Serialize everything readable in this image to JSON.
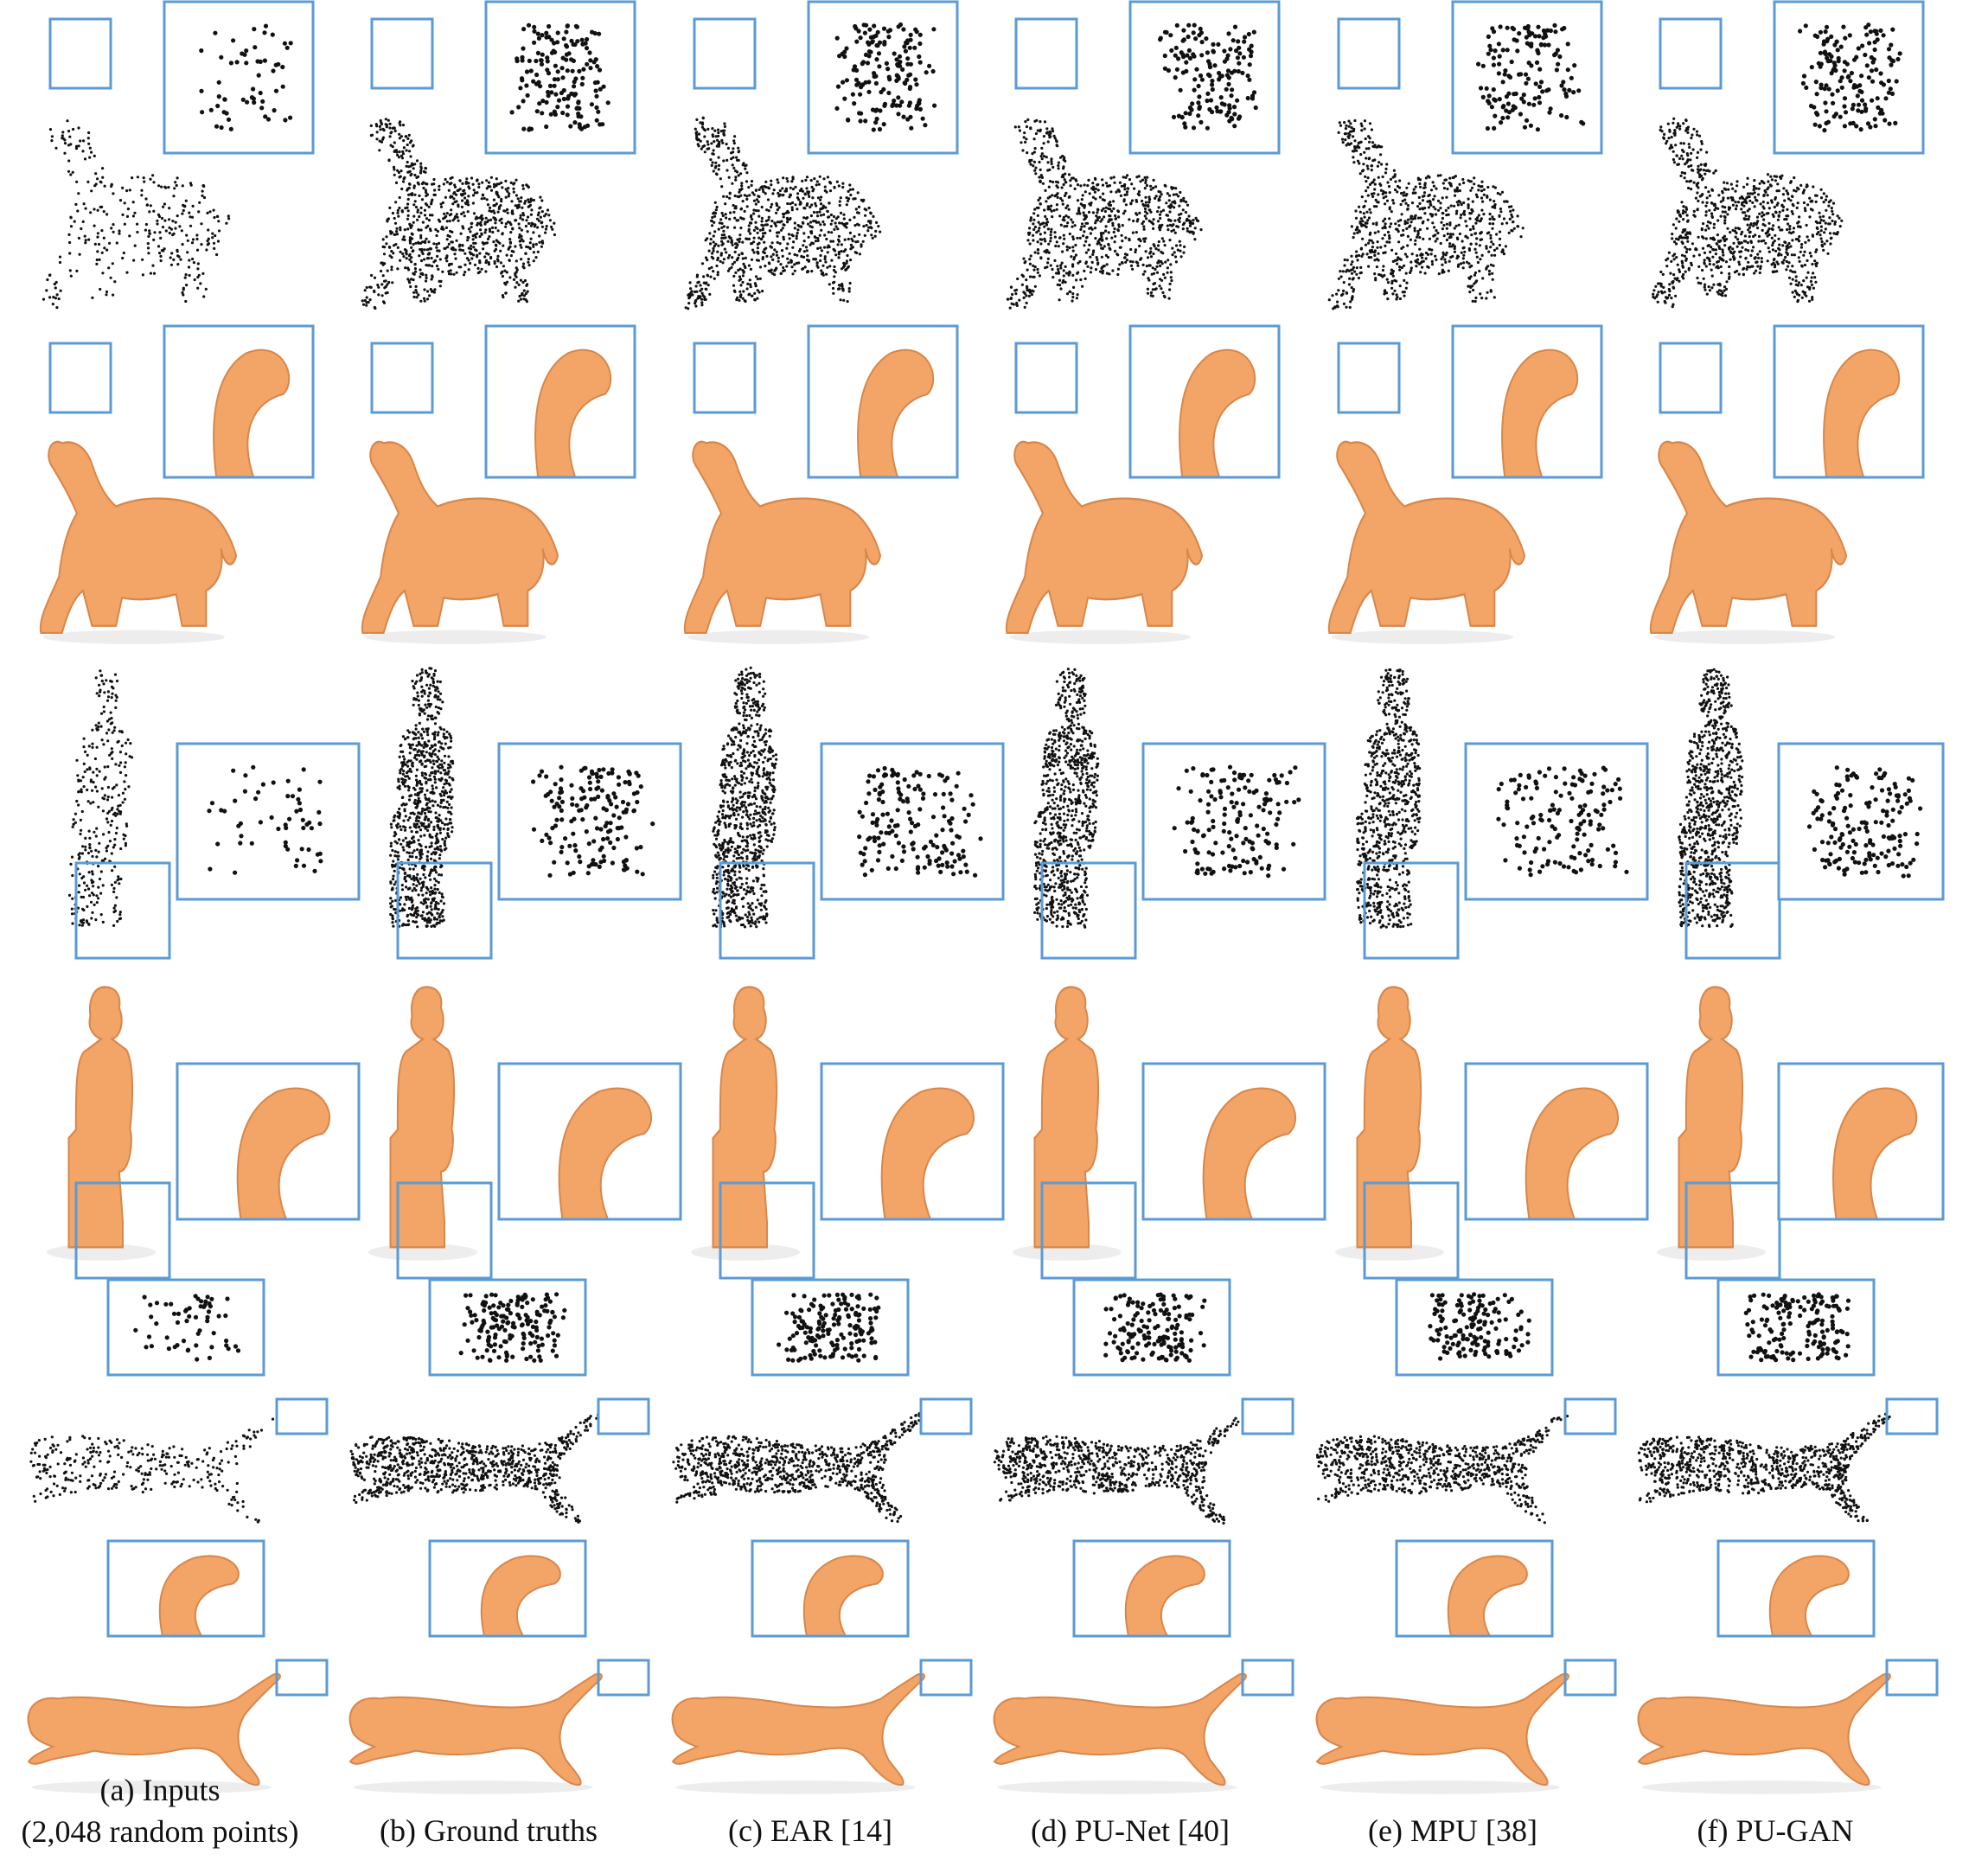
{
  "figure": {
    "columns": [
      {
        "id": "inputs",
        "label": "(a)  Inputs",
        "sublabel": "(2,048 random points)"
      },
      {
        "id": "ground-truths",
        "label": "(b) Ground truths"
      },
      {
        "id": "ear",
        "label": "(c) EAR [14]"
      },
      {
        "id": "pu-net",
        "label": "(d) PU-Net [40]"
      },
      {
        "id": "mpu",
        "label": "(e) MPU [38]"
      },
      {
        "id": "pu-gan",
        "label": "(f) PU-GAN"
      }
    ],
    "rows": [
      {
        "id": "elephant-points",
        "object": "elephant",
        "style": "points"
      },
      {
        "id": "elephant-mesh",
        "object": "elephant",
        "style": "mesh"
      },
      {
        "id": "statue-points",
        "object": "statue",
        "style": "points"
      },
      {
        "id": "statue-mesh",
        "object": "statue",
        "style": "mesh"
      },
      {
        "id": "leopard-points",
        "object": "leopard",
        "style": "points"
      },
      {
        "id": "leopard-mesh",
        "object": "leopard",
        "style": "mesh"
      }
    ],
    "colors": {
      "mesh": "#f2a566",
      "mesh_shadow": "#d9864a",
      "points": "#111111",
      "zoom_box": "#5b9bd5",
      "background": "#ffffff"
    },
    "point_density_by_column": [
      0.35,
      1.0,
      1.0,
      0.95,
      0.9,
      1.0
    ]
  }
}
